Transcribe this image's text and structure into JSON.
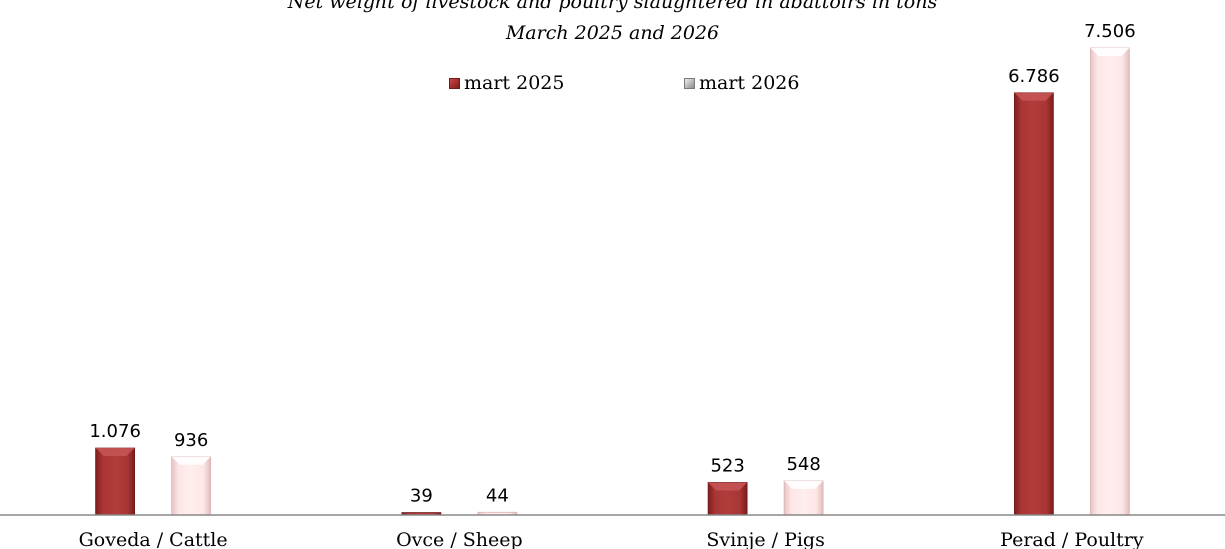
{
  "chart_data": {
    "type": "bar",
    "title": "Net weight of livestock and poultry slaughtered in abattoirs in tons",
    "subtitle": "March 2025 and 2026",
    "categories": [
      "Goveda / Cattle",
      "Ovce / Sheep",
      "Svinje / Pigs",
      "Perad / Poultry"
    ],
    "series": [
      {
        "name": "mart 2025",
        "values": [
          1076,
          39,
          523,
          6786
        ],
        "labels": [
          "1.076",
          "39",
          "523",
          "6.786"
        ],
        "color": "#a83232"
      },
      {
        "name": "mart 2026",
        "values": [
          936,
          44,
          548,
          7506
        ],
        "labels": [
          "936",
          "44",
          "548",
          "7.506"
        ],
        "color": "#fde4e4"
      }
    ],
    "xlabel": "",
    "ylabel": "",
    "ylim": [
      0,
      7506
    ],
    "grid": false,
    "legend": "top-center"
  }
}
